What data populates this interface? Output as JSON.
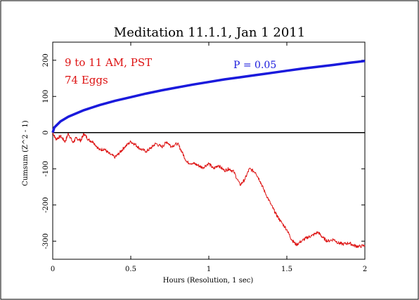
{
  "chart_data": {
    "type": "line",
    "title": "Meditation 11.1.1, Jan 1 2011",
    "xlabel": "Hours (Resolution, 1 sec)",
    "ylabel": "Cumsum (Z^2 - 1)",
    "xlim": [
      0,
      2
    ],
    "ylim": [
      -350,
      250
    ],
    "x_ticks": [
      0,
      0.5,
      1,
      1.5,
      2
    ],
    "x_tick_labels": [
      "0",
      "0.5",
      "1",
      "1.5",
      "2"
    ],
    "y_ticks": [
      -300,
      -200,
      -100,
      0,
      100,
      200
    ],
    "y_tick_labels": [
      "-300",
      "-200",
      "-100",
      "0",
      "100",
      "200"
    ],
    "annotations": {
      "time_range": "9 to 11 AM, PST",
      "eggs": "74 Eggs",
      "p_label": "P = 0.05"
    },
    "series": [
      {
        "role": "probability-envelope",
        "color": "#1a1adc",
        "x": [
          0,
          0.01,
          0.05,
          0.1,
          0.2,
          0.3,
          0.4,
          0.5,
          0.6,
          0.7,
          0.8,
          0.9,
          1.0,
          1.1,
          1.2,
          1.3,
          1.4,
          1.5,
          1.6,
          1.7,
          1.8,
          1.9,
          2.0
        ],
        "values": [
          0,
          14,
          31,
          44,
          62,
          76,
          88,
          98,
          108,
          117,
          125,
          133,
          140,
          147,
          153,
          159,
          165,
          171,
          177,
          182,
          187,
          193,
          198
        ]
      },
      {
        "role": "cumulative-deviation",
        "color": "#dd1111",
        "x": [
          0,
          0.02,
          0.05,
          0.08,
          0.1,
          0.13,
          0.15,
          0.18,
          0.2,
          0.23,
          0.26,
          0.3,
          0.33,
          0.36,
          0.4,
          0.43,
          0.46,
          0.5,
          0.53,
          0.56,
          0.6,
          0.63,
          0.66,
          0.7,
          0.73,
          0.76,
          0.8,
          0.83,
          0.86,
          0.9,
          0.93,
          0.96,
          1.0,
          1.03,
          1.06,
          1.1,
          1.13,
          1.16,
          1.2,
          1.23,
          1.26,
          1.3,
          1.33,
          1.36,
          1.4,
          1.43,
          1.46,
          1.5,
          1.53,
          1.56,
          1.6,
          1.63,
          1.66,
          1.7,
          1.73,
          1.76,
          1.8,
          1.83,
          1.86,
          1.9,
          1.93,
          1.96,
          2.0
        ],
        "values": [
          0,
          -18,
          -10,
          -25,
          -2,
          -28,
          -15,
          -22,
          -3,
          -20,
          -26,
          -48,
          -45,
          -58,
          -68,
          -55,
          -40,
          -25,
          -33,
          -45,
          -52,
          -42,
          -30,
          -40,
          -25,
          -38,
          -30,
          -55,
          -82,
          -85,
          -90,
          -97,
          -85,
          -100,
          -90,
          -105,
          -100,
          -108,
          -145,
          -130,
          -100,
          -110,
          -135,
          -165,
          -200,
          -225,
          -245,
          -268,
          -295,
          -310,
          -298,
          -290,
          -285,
          -275,
          -290,
          -300,
          -295,
          -305,
          -308,
          -305,
          -312,
          -315,
          -312
        ]
      }
    ]
  }
}
